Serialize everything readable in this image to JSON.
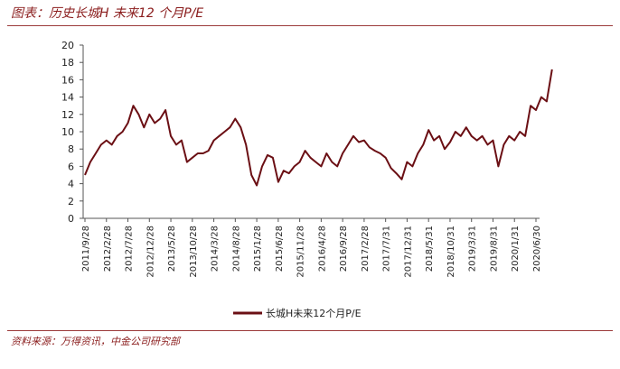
{
  "header": {
    "title": "图表：历史长城H 未来12 个月P/E"
  },
  "footer": {
    "source": "资料来源：万得资讯，中金公司研究部"
  },
  "colors": {
    "series": "#6b0f14",
    "title": "#8a1c1c",
    "rule": "#9b3a3a"
  },
  "chart_data": {
    "type": "line",
    "title": "历史长城H 未来12 个月P/E",
    "xlabel": "",
    "ylabel": "",
    "ylim": [
      0,
      20
    ],
    "yticks": [
      "0",
      "2",
      "4",
      "6",
      "8",
      "10",
      "12",
      "14",
      "16",
      "18",
      "20"
    ],
    "xticks": [
      "2011/9/28",
      "2012/2/28",
      "2012/7/28",
      "2012/12/28",
      "2013/5/28",
      "2013/10/28",
      "2014/3/28",
      "2014/8/28",
      "2015/1/28",
      "2015/6/28",
      "2015/11/28",
      "2016/4/28",
      "2016/9/28",
      "2017/2/28",
      "2017/7/31",
      "2017/12/31",
      "2018/5/31",
      "2018/10/31",
      "2019/3/31",
      "2019/8/31",
      "2020/1/31",
      "2020/6/30"
    ],
    "legend": {
      "label": "长城H未来12个月P/E",
      "position": "bottom"
    },
    "series": [
      {
        "name": "长城H未来12个月P/E",
        "x": [
          0,
          0.25,
          0.5,
          0.75,
          1,
          1.25,
          1.5,
          1.75,
          2,
          2.25,
          2.5,
          2.75,
          3,
          3.25,
          3.5,
          3.75,
          4,
          4.25,
          4.5,
          4.75,
          5,
          5.25,
          5.5,
          5.75,
          6,
          6.25,
          6.5,
          6.75,
          7,
          7.25,
          7.5,
          7.75,
          8,
          8.25,
          8.5,
          8.75,
          9,
          9.25,
          9.5,
          9.75,
          10,
          10.25,
          10.5,
          10.75,
          11,
          11.25,
          11.5,
          11.75,
          12,
          12.25,
          12.5,
          12.75,
          13,
          13.25,
          13.5,
          13.75,
          14,
          14.25,
          14.5,
          14.75,
          15,
          15.25,
          15.5,
          15.75,
          16,
          16.25,
          16.5,
          16.75,
          17,
          17.25,
          17.5,
          17.75,
          18,
          18.25,
          18.5,
          18.75,
          19,
          19.25,
          19.5,
          19.75,
          20,
          20.25,
          20.5,
          20.75,
          21,
          21.25,
          21.5,
          21.75
        ],
        "values": [
          5.0,
          6.5,
          7.5,
          8.5,
          9.0,
          8.5,
          9.5,
          10.0,
          11.0,
          13.0,
          12.0,
          10.5,
          12.0,
          11.0,
          11.5,
          12.5,
          9.5,
          8.5,
          9.0,
          6.5,
          7.0,
          7.5,
          7.5,
          7.8,
          9.0,
          9.5,
          10.0,
          10.5,
          11.5,
          10.5,
          8.5,
          5.0,
          3.8,
          6.0,
          7.3,
          7.0,
          4.2,
          5.5,
          5.2,
          6.0,
          6.5,
          7.8,
          7.0,
          6.5,
          6.0,
          7.5,
          6.5,
          6.0,
          7.5,
          8.5,
          9.5,
          8.8,
          9.0,
          8.2,
          7.8,
          7.5,
          7.0,
          5.8,
          5.2,
          4.5,
          6.5,
          6.0,
          7.5,
          8.5,
          10.2,
          9.0,
          9.5,
          8.0,
          8.8,
          10.0,
          9.5,
          10.5,
          9.5,
          9.0,
          9.5,
          8.5,
          9.0,
          6.0,
          8.5,
          9.5,
          9.0,
          10.0,
          9.5,
          13.0,
          12.5,
          14.0,
          13.5,
          17.2
        ]
      }
    ]
  }
}
